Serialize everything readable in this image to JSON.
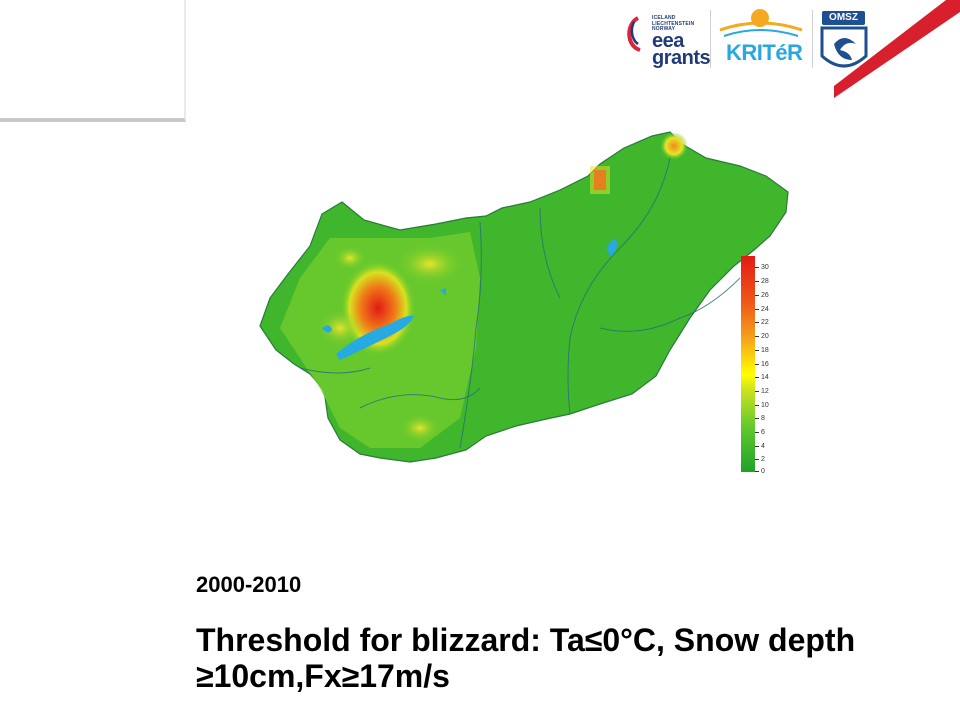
{
  "logos": {
    "eea_countries": [
      "ICELAND",
      "LIECHTENSTEIN",
      "NORWAY"
    ],
    "eea_line1": "eea",
    "eea_line2": "grants",
    "kriter": "KRITéR",
    "omsz": "OMSZ",
    "accent_red": "#d7263d",
    "accent_blue": "#1d4f91"
  },
  "map": {
    "legend_ticks": [
      "30",
      "28",
      "26",
      "24",
      "22",
      "20",
      "18",
      "16",
      "14",
      "12",
      "10",
      "8",
      "6",
      "4",
      "2",
      "0"
    ],
    "legend_range": [
      0,
      30
    ],
    "water_color": "#27a9e1",
    "low_color": "#1fa22a",
    "high_color": "#e21a17"
  },
  "caption": {
    "period": "2000-2010",
    "title": "Threshold for blizzard: Ta≤0°C, Snow depth ≥10cm,Fx≥17m/s"
  }
}
